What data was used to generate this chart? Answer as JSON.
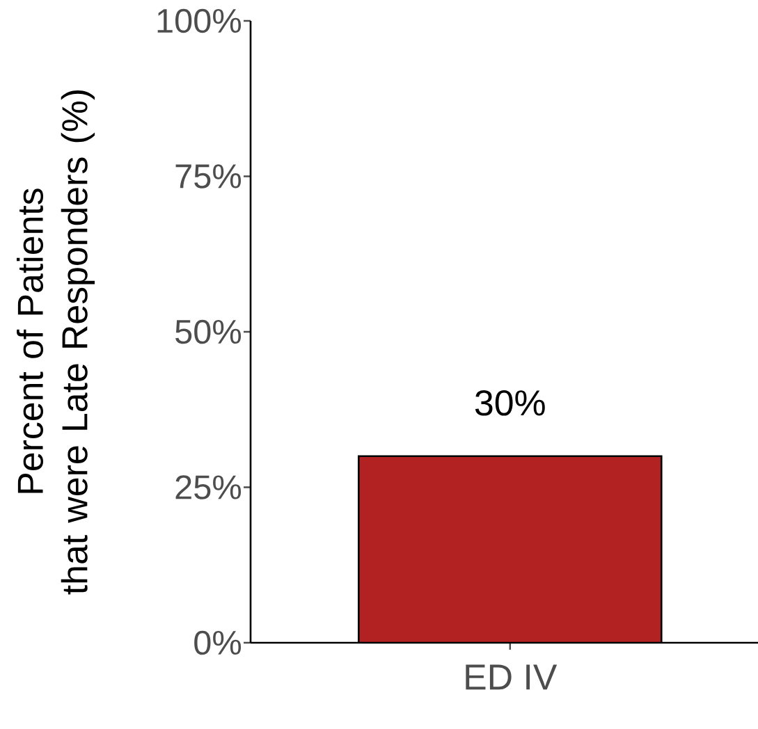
{
  "chart_data": {
    "type": "bar",
    "ylabel": "Percent of Patients that were Late Responders (%)",
    "categories": [
      "ED IV"
    ],
    "values": [
      30
    ],
    "color": "#b22222",
    "value_labels": [
      "30%"
    ],
    "ylim": [
      0,
      100
    ],
    "yticks": [
      {
        "value": 0,
        "label": "0%"
      },
      {
        "value": 25,
        "label": "25%"
      },
      {
        "value": 50,
        "label": "50%"
      },
      {
        "value": 75,
        "label": "75%"
      },
      {
        "value": 100,
        "label": "100%"
      }
    ]
  }
}
